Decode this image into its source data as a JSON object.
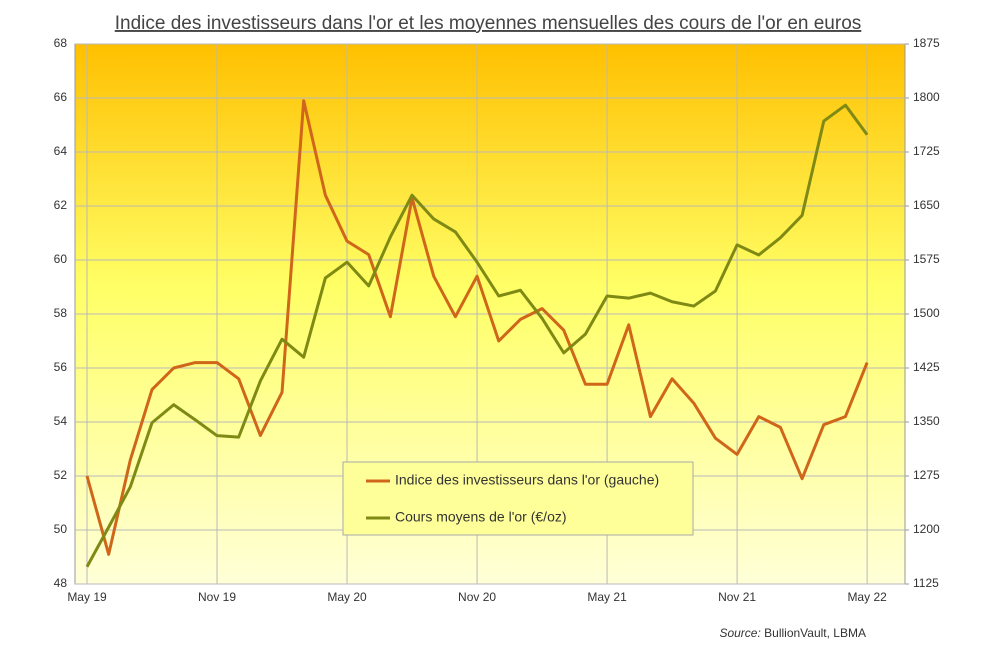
{
  "chart_data": {
    "type": "line",
    "title": "Indice des investisseurs dans l'or et les moyennes mensuelles des cours de l'or en euros",
    "source_label": "Source:",
    "source_text": "BullionVault, LBMA",
    "categories": [
      "May 19",
      null,
      null,
      null,
      null,
      null,
      "Nov 19",
      null,
      null,
      null,
      null,
      null,
      "May 20",
      null,
      null,
      null,
      null,
      null,
      "Nov 20",
      null,
      null,
      null,
      null,
      null,
      "May 21",
      null,
      null,
      null,
      null,
      null,
      "Nov 21",
      null,
      null,
      null,
      null,
      null,
      "May 22"
    ],
    "series": [
      {
        "name": "Indice des investisseurs dans l'or (gauche)",
        "color": "#d0661a",
        "values": [
          52.0,
          49.1,
          52.6,
          55.2,
          56.0,
          56.2,
          56.2,
          55.6,
          53.5,
          55.1,
          65.9,
          62.4,
          60.7,
          60.2,
          57.9,
          62.3,
          59.4,
          57.9,
          59.4,
          57.0,
          57.8,
          58.2,
          57.4,
          55.4,
          55.4,
          57.6,
          54.2,
          55.6,
          54.7,
          53.4,
          52.8,
          54.2,
          53.8,
          51.9,
          53.9,
          54.2,
          56.2
        ]
      },
      {
        "name": "Cours moyens de l'or (€/oz)",
        "color": "#7f8a14",
        "axis": "y2",
        "values": [
          1149,
          1204,
          1260,
          1349,
          1374,
          1353,
          1331,
          1329,
          1407,
          1465,
          1440,
          1550,
          1572,
          1539,
          1607,
          1665,
          1632,
          1614,
          1572,
          1525,
          1533,
          1494,
          1446,
          1472,
          1525,
          1522,
          1529,
          1517,
          1511,
          1532,
          1596,
          1582,
          1606,
          1637,
          1768,
          1790,
          1749
        ]
      }
    ],
    "ylim": [
      48,
      68
    ],
    "yticks": [
      48,
      50,
      52,
      54,
      56,
      58,
      60,
      62,
      64,
      66,
      68
    ],
    "y2lim": [
      1125,
      1875
    ],
    "y2ticks": [
      1125,
      1200,
      1275,
      1350,
      1425,
      1500,
      1575,
      1650,
      1725,
      1800,
      1875
    ],
    "grid": true
  }
}
